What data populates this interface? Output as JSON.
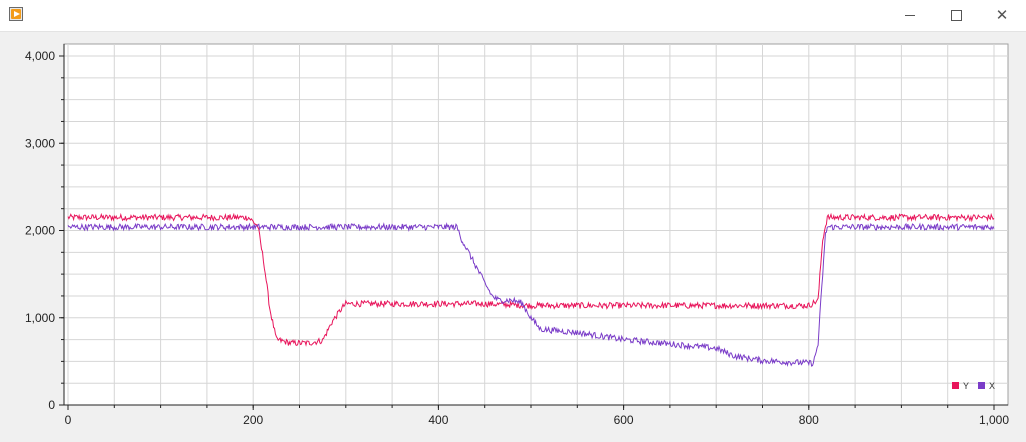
{
  "window": {
    "minimize_icon": "minimize-icon",
    "maximize_icon": "maximize-icon",
    "close_icon": "close-icon",
    "app_icon": "play-app-icon"
  },
  "chart_data": {
    "type": "line",
    "title": "",
    "xlabel": "",
    "ylabel": "",
    "xlim": [
      0,
      1000
    ],
    "ylim": [
      0,
      4000
    ],
    "grid": true,
    "legend_position": "bottom-right",
    "x_ticks": [
      "0",
      "200",
      "400",
      "600",
      "800",
      "1,000"
    ],
    "y_ticks": [
      "0",
      "1,000",
      "2,000",
      "3,000",
      "4,000"
    ],
    "series": [
      {
        "name": "Y",
        "color": "#e8155b",
        "x": [
          0,
          50,
          100,
          150,
          195,
          205,
          212,
          218,
          225,
          240,
          260,
          275,
          285,
          295,
          300,
          350,
          400,
          450,
          500,
          550,
          600,
          650,
          700,
          750,
          800,
          810,
          815,
          820,
          850,
          900,
          950,
          1000
        ],
        "values": [
          2150,
          2150,
          2150,
          2150,
          2150,
          2050,
          1600,
          1100,
          750,
          710,
          710,
          740,
          950,
          1100,
          1160,
          1160,
          1160,
          1160,
          1140,
          1140,
          1140,
          1140,
          1140,
          1140,
          1140,
          1200,
          1900,
          2150,
          2150,
          2150,
          2150,
          2150
        ]
      },
      {
        "name": "X",
        "color": "#7a3cc8",
        "x": [
          0,
          50,
          100,
          150,
          200,
          250,
          300,
          350,
          400,
          420,
          425,
          430,
          440,
          450,
          458,
          465,
          480,
          490,
          500,
          510,
          550,
          600,
          650,
          700,
          720,
          750,
          780,
          805,
          810,
          815,
          818,
          820,
          850,
          900,
          950,
          1000
        ],
        "values": [
          2040,
          2040,
          2040,
          2040,
          2040,
          2040,
          2040,
          2040,
          2040,
          2040,
          1900,
          1800,
          1600,
          1400,
          1250,
          1200,
          1200,
          1170,
          1000,
          870,
          830,
          750,
          700,
          650,
          560,
          510,
          490,
          480,
          700,
          1500,
          1950,
          2040,
          2040,
          2040,
          2040,
          2040
        ]
      }
    ]
  }
}
